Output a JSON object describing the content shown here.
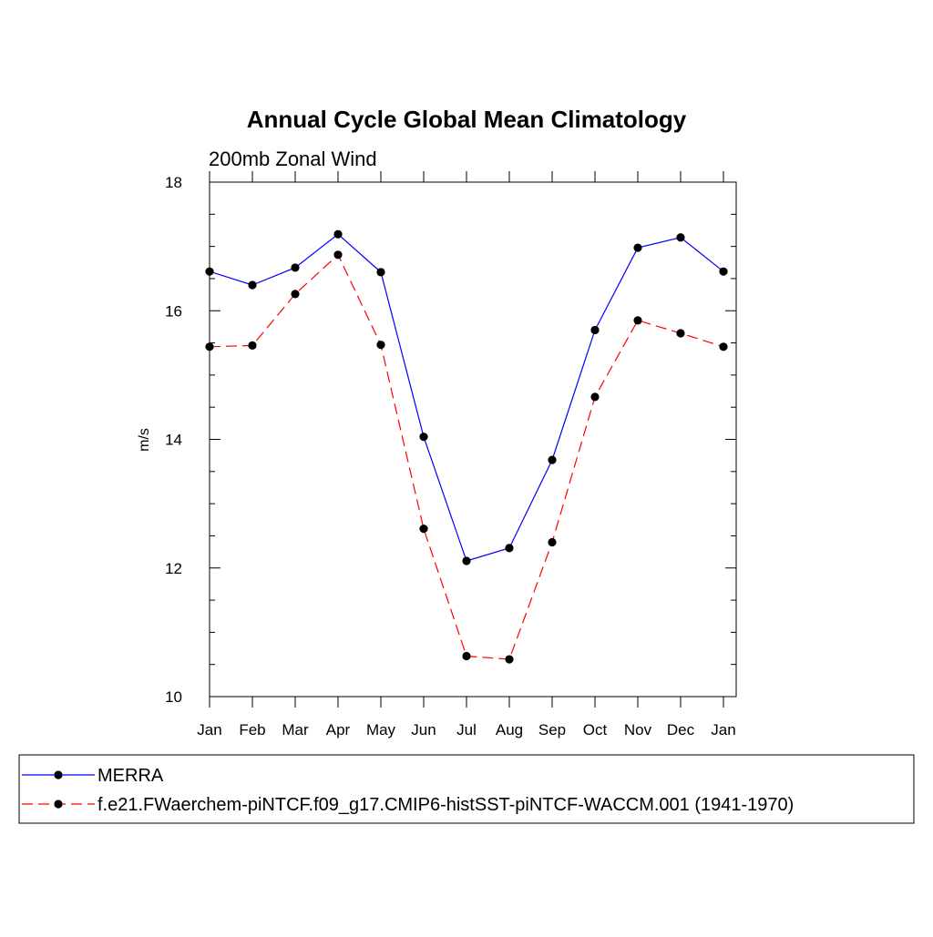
{
  "chart_data": {
    "type": "line",
    "title": "Annual Cycle Global Mean Climatology",
    "subtitle": "200mb Zonal Wind",
    "xlabel": "",
    "ylabel": "m/s",
    "categories": [
      "Jan",
      "Feb",
      "Mar",
      "Apr",
      "May",
      "Jun",
      "Jul",
      "Aug",
      "Sep",
      "Oct",
      "Nov",
      "Dec",
      "Jan"
    ],
    "ylim": [
      10,
      18
    ],
    "yticks": [
      "10",
      "12",
      "14",
      "16",
      "18"
    ],
    "grid": false,
    "legend_position": "bottom",
    "series": [
      {
        "name": "MERRA",
        "color": "#0000ff",
        "line_style": "solid",
        "marker": "filled-circle",
        "values": [
          16.61,
          16.4,
          16.67,
          17.19,
          16.6,
          14.04,
          12.11,
          12.31,
          13.68,
          15.7,
          16.98,
          17.14,
          16.61
        ]
      },
      {
        "name": "f.e21.FWaerchem-piNTCF.f09_g17.CMIP6-histSST-piNTCF-WACCM.001 (1941-1970)",
        "color": "#ff0000",
        "line_style": "dashed",
        "marker": "filled-circle",
        "values": [
          15.44,
          15.46,
          16.26,
          16.87,
          15.47,
          12.61,
          10.63,
          10.58,
          12.4,
          14.66,
          15.85,
          15.65,
          15.44
        ]
      }
    ]
  }
}
